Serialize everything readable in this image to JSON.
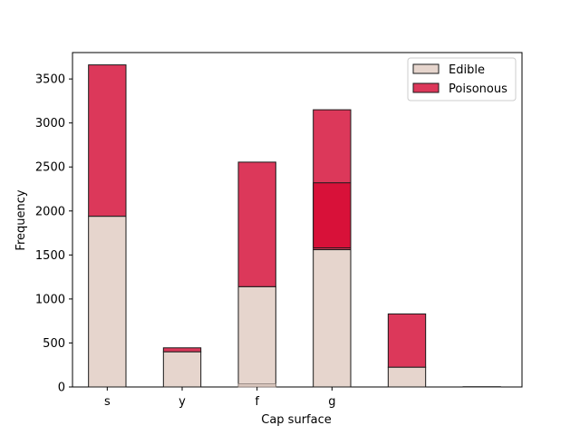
{
  "chart_data": {
    "type": "bar",
    "stacked": true,
    "xlabel": "Cap surface",
    "ylabel": "Frequency",
    "ylim": [
      0,
      3800
    ],
    "yticks": [
      0,
      500,
      1000,
      1500,
      2000,
      2500,
      3000,
      3500
    ],
    "categories": [
      "s",
      "y",
      "f",
      "g",
      "",
      ""
    ],
    "series": [
      {
        "name": "Edible",
        "values": [
          1940,
          400,
          1140,
          1560,
          225,
          0
        ]
      },
      {
        "name": "Poisonous",
        "values": [
          1720,
          45,
          1415,
          1590,
          605,
          3
        ]
      }
    ],
    "overlay_bars": [
      {
        "category": "g",
        "base": 1580,
        "top": 2320
      }
    ],
    "faint_bars": [
      {
        "category": "f",
        "value": 35
      }
    ],
    "colors": {
      "Edible": "#e6d5cd",
      "Poisonous": "#dc385a",
      "overlay": "#d81139",
      "edge": "#1a1a1a"
    },
    "grid": false,
    "legend_position": "top-right"
  }
}
